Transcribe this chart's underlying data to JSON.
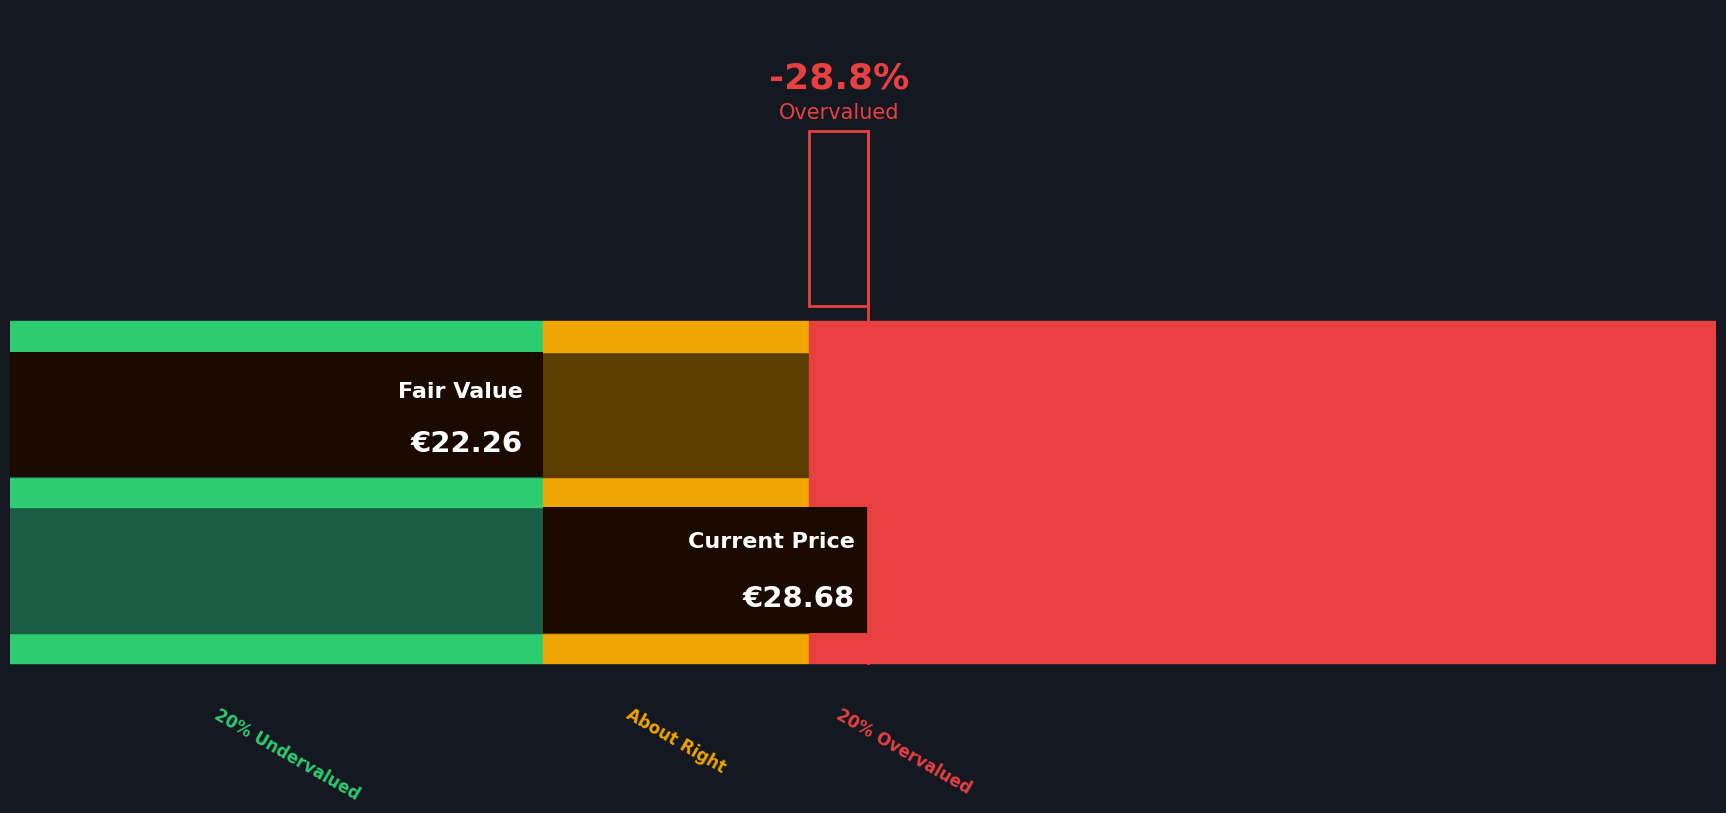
{
  "background_color": "#141821",
  "green_light": "#2ecc71",
  "green_dark": "#1b5e45",
  "yellow_color": "#f0a500",
  "yellow_dark": "#5c3d00",
  "red_color": "#e84040",
  "annotation_dark": "#1a0a00",
  "fair_value": 22.26,
  "current_price": 28.68,
  "price_min": 0,
  "price_max": 57,
  "fair_value_pct": 0.2,
  "pct_overvalued": "-28.8%",
  "overvalued_label": "Overvalued",
  "current_price_label": "Current Price",
  "current_price_str": "€28.68",
  "fair_value_label": "Fair Value",
  "fair_value_str": "€22.26",
  "label_undervalued": "20% Undervalued",
  "label_about_right": "About Right",
  "label_overvalued": "20% Overvalued"
}
